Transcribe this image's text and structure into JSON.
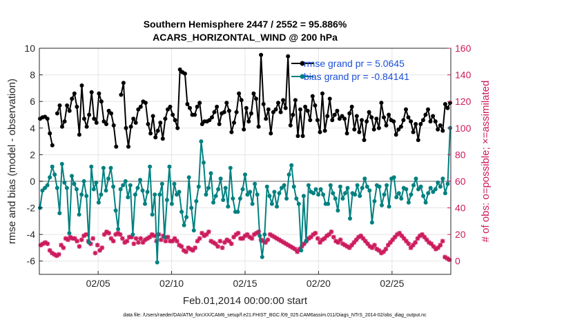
{
  "chart_data": {
    "type": "line",
    "title_line1": "Southern Hemisphere 2447 / 2552 = 95.886%",
    "title_line2": "ACARS_HORIZONTAL_WIND @ 200 hPa",
    "xlabel": "Feb.01,2014 00:00:00 start",
    "ylabel": "rmse and bias (model - observation)",
    "ylabel_right": "# of obs: o=possible; ×=assimilated",
    "footnote": "data file: /Users/raeder/DAI/ATM_forcXX/CAM6_setup/f.e21.FHIST_BGC.f09_025.CAM6assim.011/Diags_NTrS_2014-02/obs_diag_output.nc",
    "x_tick_labels": [
      "02/05",
      "02/10",
      "02/15",
      "02/20",
      "02/25"
    ],
    "x_ticks": [
      5,
      10,
      15,
      20,
      25
    ],
    "xlim": [
      1,
      29
    ],
    "ylim": [
      -7,
      10
    ],
    "yticks": [
      -6,
      -4,
      -2,
      0,
      2,
      4,
      6,
      8,
      10
    ],
    "ylim_right": [
      -10,
      160
    ],
    "yticks_right": [
      0,
      20,
      40,
      60,
      80,
      100,
      120,
      140,
      160
    ],
    "grid": true,
    "legend_position": "top-right",
    "colors": {
      "rmse": "#000000",
      "bias": "#008080",
      "counts": "#cc1a5c",
      "zero_line": "#b0b0b0"
    },
    "legend": [
      {
        "label": "rmse grand pr = 5.0645",
        "color": "#000000"
      },
      {
        "label": "bias grand pr = -0.84141",
        "color": "#008080"
      }
    ],
    "series": [
      {
        "name": "rmse grand pr = 5.0645",
        "axis": "left",
        "values": [
          4.7,
          4.8,
          4.85,
          4.7,
          3.6,
          2.7,
          null,
          5.1,
          5.7,
          4.1,
          4.5,
          5.7,
          5.3,
          6.2,
          6.6,
          5.6,
          3.5,
          7.2,
          4.7,
          4.1,
          5.0,
          6.7,
          4.7,
          4.4,
          6.6,
          6.0,
          4.5,
          4.3,
          5.3,
          5.1,
          4.2,
          2.6,
          null,
          6.5,
          7.4,
          4.0,
          2.6,
          4.1,
          4.7,
          4.4,
          5.4,
          5.6,
          6.0,
          5.9,
          4.3,
          3.6,
          4.9,
          3.3,
          3.8,
          4.4,
          3.2,
          4.7,
          5.4,
          5.6,
          5.0,
          4.6,
          4.0,
          8.4,
          8.2,
          8.1,
          5.8,
          5.5,
          5.0,
          5.0,
          5.6,
          5.9,
          4.3,
          4.5,
          4.5,
          4.6,
          4.8,
          5.2,
          5.6,
          4.3,
          5.1,
          5.2,
          5.9,
          5.3,
          3.7,
          4.4,
          5.2,
          6.6,
          6.1,
          3.9,
          5.5,
          4.5,
          5.1,
          6.6,
          6.2,
          4.1,
          9.5,
          5.8,
          4.7,
          5.4,
          3.6,
          5.2,
          5.4,
          5.9,
          5.2,
          6.1,
          5.5,
          9.4,
          4.2,
          5.0,
          6.1,
          3.4,
          5.4,
          3.4,
          5.6,
          5.3,
          4.6,
          6.4,
          5.7,
          4.6,
          3.7,
          6.6,
          3.8,
          4.9,
          6.2,
          4.6,
          5.0,
          5.3,
          4.7,
          4.9,
          4.7,
          3.6,
          5.1,
          5.6,
          3.9,
          4.9,
          3.7,
          4.6,
          3.1,
          4.5,
          5.2,
          4.8,
          3.9,
          4.7,
          4.0,
          5.9,
          4.8,
          4.2,
          5.0,
          4.6,
          4.5,
          3.5,
          3.9,
          4.1,
          4.6,
          5.4,
          4.8,
          4.5,
          3.7,
          4.3,
          3.1,
          4.3,
          4.6,
          5.0,
          5.4,
          4.5,
          4.9,
          4.5,
          3.9,
          4.2,
          3.8,
          5.8,
          5.5,
          5.9
        ]
      },
      {
        "name": "bias grand pr = -0.84141",
        "axis": "left",
        "values": [
          -2.0,
          -0.7,
          -0.5,
          -0.3,
          0.3,
          1.1,
          0.5,
          -0.5,
          -2.4,
          1.3,
          -0.1,
          -0.5,
          -3.9,
          0.4,
          -0.2,
          -0.6,
          -2.5,
          -1.0,
          0.0,
          -1.1,
          -4.6,
          1.1,
          -0.6,
          -0.1,
          -1.6,
          -1.0,
          1.0,
          -0.7,
          0.2,
          1.0,
          -0.4,
          -2.2,
          -3.6,
          -0.6,
          -0.3,
          0.0,
          -1.2,
          -0.3,
          -4.0,
          -1.0,
          -0.5,
          0.1,
          -0.7,
          -1.7,
          -0.8,
          1.1,
          -2.5,
          -1.0,
          -6.1,
          -1.0,
          -0.2,
          -4.2,
          -1.4,
          1.1,
          -1.7,
          -0.2,
          -1.0,
          -0.8,
          -2.3,
          -3.3,
          -2.7,
          0.3,
          -2.0,
          -3.7,
          -1.5,
          -0.4,
          3.0,
          1.4,
          -1.0,
          -0.5,
          0.6,
          -1.6,
          -1.1,
          -0.6,
          0.2,
          -1.4,
          -0.5,
          -1.9,
          1.0,
          -1.3,
          -2.3,
          -2.3,
          -1.3,
          -0.6,
          0.5,
          -1.0,
          -0.8,
          -1.7,
          -0.2,
          -1.0,
          -4.1,
          -5.7,
          -4.0,
          -0.4,
          -1.1,
          -1.7,
          -0.8,
          -1.9,
          -0.9,
          -0.5,
          -0.3,
          -1.3,
          0.5,
          1.2,
          -0.4,
          -1.3,
          -1.7,
          -5.2,
          -1.1,
          -4.5,
          -0.3,
          -0.8,
          -0.9,
          -0.6,
          -1.0,
          -0.6,
          -1.0,
          -1.7,
          -1.7,
          -0.3,
          -0.9,
          -1.3,
          -2.2,
          -0.4,
          -1.3,
          -0.9,
          -0.5,
          -2.8,
          -0.9,
          -1.0,
          -0.3,
          -1.1,
          -0.5,
          0.2,
          -0.4,
          -0.7,
          -3.1,
          -1.5,
          -0.3,
          -0.4,
          -1.8,
          -1.0,
          -0.3,
          -1.9,
          0.2,
          0.3,
          -1.2,
          -0.9,
          -1.3,
          -0.5,
          -0.6,
          -1.6,
          -1.0,
          -0.3,
          0.2,
          -0.6,
          -0.4,
          -1.1,
          -1.6,
          -0.9,
          -0.5,
          -0.8,
          -0.6,
          -0.1,
          -0.4,
          0.2,
          -0.9,
          -0.2,
          4.0
        ]
      }
    ],
    "obs_counts": {
      "assimilated": [
        12,
        13,
        14,
        13,
        8,
        6,
        5,
        4,
        5,
        12,
        10,
        17,
        16,
        18,
        17,
        17,
        15,
        11,
        16,
        19,
        20,
        15,
        13,
        17,
        6,
        12,
        8,
        10,
        20,
        22,
        21,
        17,
        15,
        20,
        21,
        20,
        17,
        14,
        15,
        18,
        18,
        13,
        17,
        14,
        17,
        14,
        16,
        17,
        18,
        20,
        19,
        15,
        20,
        16,
        19,
        15,
        18,
        15,
        15,
        17,
        15,
        12,
        11,
        8,
        7,
        10,
        9,
        8,
        10,
        15,
        17,
        21,
        19,
        20,
        22,
        15,
        14,
        13,
        11,
        15,
        10,
        14,
        16,
        15,
        13,
        18,
        20,
        21,
        17,
        17,
        19,
        20,
        18,
        17,
        20,
        21,
        22,
        16,
        15,
        14,
        16,
        20,
        19,
        18,
        17,
        16,
        15,
        14,
        13,
        12,
        11,
        10,
        9,
        7,
        9,
        11,
        13,
        15,
        17,
        18,
        20,
        21,
        17,
        14,
        16,
        17,
        19,
        20,
        22,
        18,
        15,
        14,
        16,
        13,
        12,
        11,
        10,
        12,
        14,
        16,
        18,
        19,
        17,
        15,
        13,
        11,
        10,
        12,
        9,
        8,
        6,
        7,
        9,
        12,
        14,
        16,
        18,
        20,
        21,
        19,
        17,
        15,
        13,
        10,
        12,
        14,
        17,
        19,
        20,
        18,
        16,
        14,
        13,
        11,
        9,
        10,
        12,
        15,
        3,
        2,
        1
      ]
    }
  }
}
